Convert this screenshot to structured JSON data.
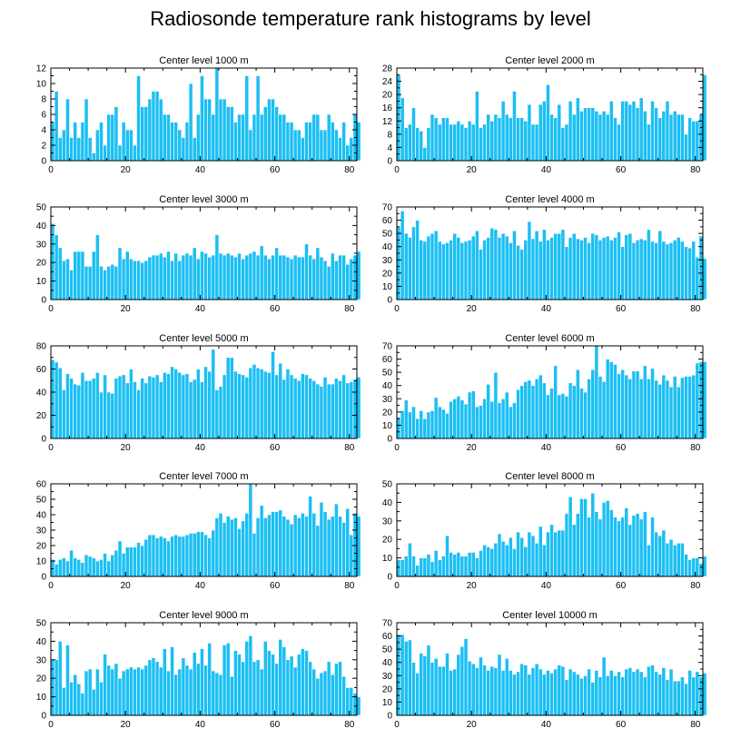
{
  "title": "Radiosonde temperature rank histograms by level",
  "style": {
    "bar_color": "#1CBFF3",
    "bar_edge": "#ffffff",
    "axis_color": "#000000"
  },
  "chart_data": [
    {
      "type": "bar",
      "title": "Center level 1000 m",
      "xlim": [
        0,
        82
      ],
      "ylim": [
        0,
        12
      ],
      "xticks": [
        0,
        20,
        40,
        60,
        80
      ],
      "yticks": [
        0,
        2,
        4,
        6,
        8,
        10,
        12
      ],
      "values": [
        5,
        9,
        3,
        4,
        8,
        3,
        5,
        3,
        5,
        8,
        3,
        1,
        4,
        5,
        2,
        6,
        6,
        7,
        2,
        5,
        4,
        4,
        2,
        11,
        7,
        7,
        8,
        9,
        9,
        8,
        6,
        6,
        5,
        5,
        4,
        3,
        5,
        10,
        3,
        6,
        11,
        8,
        8,
        6,
        12,
        8,
        8,
        7,
        7,
        5,
        6,
        6,
        11,
        4,
        6,
        11,
        6,
        7,
        8,
        8,
        7,
        6,
        6,
        5,
        5,
        4,
        4,
        3,
        5,
        5,
        6,
        6,
        4,
        4,
        6,
        5,
        4,
        3,
        5,
        2,
        3,
        6,
        5
      ]
    },
    {
      "type": "bar",
      "title": "Center level 2000 m",
      "xlim": [
        0,
        82
      ],
      "ylim": [
        0,
        28
      ],
      "xticks": [
        0,
        20,
        40,
        60,
        80
      ],
      "yticks": [
        0,
        4,
        8,
        12,
        16,
        20,
        24,
        28
      ],
      "values": [
        26,
        19,
        10,
        11,
        16,
        10,
        9,
        4,
        10,
        14,
        13,
        11,
        13,
        13,
        11,
        11,
        12,
        11,
        10,
        12,
        11,
        21,
        10,
        11,
        14,
        12,
        14,
        13,
        18,
        14,
        13,
        21,
        13,
        13,
        12,
        17,
        11,
        11,
        17,
        18,
        23,
        14,
        13,
        17,
        10,
        11,
        18,
        14,
        19,
        15,
        16,
        16,
        16,
        15,
        14,
        15,
        14,
        18,
        13,
        11,
        18,
        18,
        17,
        18,
        16,
        19,
        15,
        11,
        18,
        16,
        13,
        15,
        18,
        14,
        15,
        14,
        14,
        8,
        13,
        12,
        12,
        14,
        26
      ]
    },
    {
      "type": "bar",
      "title": "Center level 3000 m",
      "xlim": [
        0,
        82
      ],
      "ylim": [
        0,
        50
      ],
      "xticks": [
        0,
        20,
        40,
        60,
        80
      ],
      "yticks": [
        0,
        10,
        20,
        30,
        40,
        50
      ],
      "values": [
        41,
        35,
        28,
        21,
        22,
        16,
        26,
        26,
        26,
        18,
        18,
        26,
        35,
        18,
        16,
        18,
        19,
        18,
        28,
        22,
        26,
        22,
        21,
        21,
        20,
        21,
        23,
        24,
        24,
        25,
        23,
        26,
        21,
        25,
        21,
        24,
        25,
        24,
        28,
        22,
        26,
        25,
        23,
        24,
        35,
        25,
        24,
        25,
        24,
        23,
        25,
        22,
        24,
        25,
        26,
        24,
        29,
        24,
        22,
        24,
        28,
        24,
        24,
        23,
        22,
        24,
        23,
        23,
        30,
        24,
        22,
        28,
        23,
        21,
        18,
        25,
        21,
        24,
        24,
        19,
        22,
        24,
        26
      ]
    },
    {
      "type": "bar",
      "title": "Center level 4000 m",
      "xlim": [
        0,
        82
      ],
      "ylim": [
        0,
        70
      ],
      "xticks": [
        0,
        20,
        40,
        60,
        80
      ],
      "yticks": [
        0,
        10,
        20,
        30,
        40,
        50,
        60,
        70
      ],
      "values": [
        55,
        67,
        50,
        47,
        55,
        60,
        45,
        44,
        48,
        50,
        52,
        44,
        42,
        43,
        45,
        50,
        47,
        43,
        44,
        45,
        48,
        52,
        38,
        45,
        47,
        54,
        53,
        47,
        50,
        48,
        43,
        52,
        41,
        38,
        45,
        59,
        46,
        52,
        44,
        53,
        45,
        47,
        50,
        50,
        53,
        40,
        47,
        50,
        46,
        45,
        47,
        43,
        50,
        49,
        45,
        47,
        48,
        45,
        47,
        51,
        40,
        49,
        50,
        43,
        45,
        46,
        45,
        53,
        44,
        43,
        52,
        44,
        42,
        43,
        45,
        47,
        44,
        40,
        39,
        44,
        32,
        48,
        31
      ]
    },
    {
      "type": "bar",
      "title": "Center level 5000 m",
      "xlim": [
        0,
        82
      ],
      "ylim": [
        0,
        80
      ],
      "xticks": [
        0,
        20,
        40,
        60,
        80
      ],
      "yticks": [
        0,
        20,
        40,
        60,
        80
      ],
      "values": [
        68,
        66,
        61,
        42,
        56,
        52,
        47,
        46,
        57,
        50,
        50,
        52,
        57,
        40,
        55,
        40,
        39,
        52,
        54,
        55,
        48,
        60,
        49,
        42,
        52,
        48,
        54,
        53,
        55,
        49,
        57,
        56,
        62,
        60,
        57,
        55,
        56,
        49,
        51,
        60,
        49,
        62,
        58,
        77,
        42,
        45,
        55,
        70,
        70,
        58,
        56,
        55,
        53,
        61,
        64,
        61,
        60,
        58,
        57,
        75,
        55,
        65,
        51,
        60,
        55,
        52,
        50,
        56,
        55,
        52,
        50,
        47,
        45,
        53,
        47,
        47,
        52,
        50,
        55,
        48,
        49,
        51,
        53
      ]
    },
    {
      "type": "bar",
      "title": "Center level 6000 m",
      "xlim": [
        0,
        82
      ],
      "ylim": [
        0,
        70
      ],
      "xticks": [
        0,
        20,
        40,
        60,
        80
      ],
      "yticks": [
        0,
        10,
        20,
        30,
        40,
        50,
        60,
        70
      ],
      "values": [
        16,
        21,
        29,
        20,
        24,
        15,
        21,
        15,
        20,
        21,
        31,
        24,
        22,
        19,
        28,
        30,
        32,
        29,
        26,
        35,
        36,
        24,
        25,
        30,
        41,
        28,
        50,
        27,
        30,
        35,
        24,
        27,
        37,
        40,
        43,
        44,
        40,
        45,
        48,
        42,
        33,
        38,
        55,
        33,
        34,
        32,
        42,
        40,
        52,
        38,
        35,
        45,
        52,
        70,
        47,
        43,
        60,
        58,
        56,
        49,
        52,
        48,
        45,
        51,
        51,
        45,
        55,
        45,
        53,
        44,
        41,
        48,
        44,
        39,
        47,
        39,
        46,
        47,
        47,
        48,
        57,
        58,
        58
      ]
    },
    {
      "type": "bar",
      "title": "Center level 7000 m",
      "xlim": [
        0,
        82
      ],
      "ylim": [
        0,
        60
      ],
      "xticks": [
        0,
        20,
        40,
        60,
        80
      ],
      "yticks": [
        0,
        10,
        20,
        30,
        40,
        50,
        60
      ],
      "values": [
        11,
        8,
        11,
        12,
        10,
        17,
        12,
        11,
        9,
        14,
        13,
        12,
        10,
        11,
        15,
        10,
        14,
        17,
        23,
        15,
        19,
        19,
        19,
        22,
        20,
        24,
        27,
        27,
        25,
        26,
        25,
        23,
        26,
        27,
        26,
        26,
        27,
        28,
        28,
        29,
        29,
        27,
        25,
        30,
        38,
        41,
        35,
        39,
        37,
        38,
        31,
        36,
        41,
        60,
        28,
        38,
        46,
        38,
        40,
        42,
        42,
        43,
        39,
        37,
        34,
        40,
        38,
        41,
        39,
        52,
        41,
        33,
        48,
        42,
        37,
        39,
        47,
        39,
        35,
        44,
        27,
        41,
        39
      ]
    },
    {
      "type": "bar",
      "title": "Center level 8000 m",
      "xlim": [
        0,
        82
      ],
      "ylim": [
        0,
        50
      ],
      "xticks": [
        0,
        20,
        40,
        60,
        80
      ],
      "yticks": [
        0,
        10,
        20,
        30,
        40,
        50
      ],
      "values": [
        9,
        9,
        11,
        18,
        11,
        6,
        10,
        10,
        12,
        8,
        14,
        9,
        11,
        22,
        13,
        12,
        13,
        11,
        11,
        13,
        13,
        10,
        14,
        17,
        16,
        15,
        18,
        23,
        19,
        17,
        21,
        15,
        24,
        21,
        16,
        24,
        22,
        18,
        27,
        17,
        24,
        28,
        24,
        25,
        25,
        34,
        43,
        28,
        34,
        42,
        42,
        32,
        45,
        35,
        31,
        40,
        41,
        36,
        32,
        30,
        32,
        37,
        28,
        33,
        34,
        31,
        35,
        17,
        32,
        24,
        22,
        25,
        18,
        20,
        17,
        18,
        18,
        12,
        9,
        10,
        10,
        7,
        11
      ]
    },
    {
      "type": "bar",
      "title": "Center level 9000 m",
      "xlim": [
        0,
        82
      ],
      "ylim": [
        0,
        50
      ],
      "xticks": [
        0,
        20,
        40,
        60,
        80
      ],
      "yticks": [
        0,
        10,
        20,
        30,
        40,
        50
      ],
      "values": [
        30,
        30,
        40,
        15,
        38,
        18,
        22,
        17,
        12,
        24,
        25,
        14,
        25,
        18,
        33,
        27,
        25,
        28,
        20,
        24,
        25,
        26,
        25,
        26,
        25,
        27,
        30,
        31,
        29,
        26,
        36,
        24,
        37,
        22,
        25,
        31,
        27,
        25,
        34,
        28,
        36,
        27,
        39,
        24,
        23,
        22,
        38,
        39,
        21,
        35,
        33,
        29,
        40,
        43,
        29,
        30,
        25,
        40,
        35,
        33,
        28,
        41,
        37,
        30,
        32,
        26,
        33,
        36,
        35,
        29,
        25,
        20,
        23,
        24,
        29,
        22,
        28,
        29,
        21,
        15,
        15,
        12,
        10
      ]
    },
    {
      "type": "bar",
      "title": "Center level 10000 m",
      "xlim": [
        0,
        82
      ],
      "ylim": [
        0,
        70
      ],
      "xticks": [
        0,
        20,
        40,
        60,
        80
      ],
      "yticks": [
        0,
        10,
        20,
        30,
        40,
        50,
        60,
        70
      ],
      "values": [
        61,
        61,
        56,
        57,
        40,
        32,
        47,
        45,
        53,
        40,
        43,
        37,
        37,
        47,
        34,
        35,
        46,
        52,
        58,
        41,
        39,
        36,
        44,
        38,
        34,
        37,
        36,
        46,
        34,
        43,
        34,
        31,
        33,
        39,
        38,
        31,
        36,
        39,
        35,
        31,
        34,
        32,
        35,
        38,
        37,
        27,
        35,
        33,
        31,
        28,
        30,
        35,
        25,
        34,
        29,
        44,
        30,
        34,
        30,
        33,
        29,
        35,
        36,
        33,
        35,
        33,
        29,
        37,
        38,
        33,
        31,
        36,
        27,
        35,
        26,
        26,
        29,
        24,
        34,
        29,
        33,
        29,
        32
      ]
    }
  ]
}
